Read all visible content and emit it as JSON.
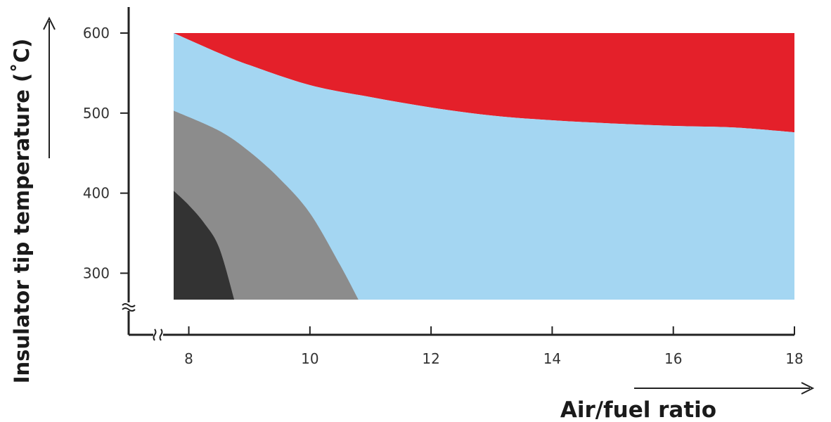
{
  "chart_data": {
    "type": "area",
    "xlabel": "Air/fuel ratio",
    "ylabel": "Insulator tip temperature (˚C)",
    "xlim": [
      7.75,
      18
    ],
    "ylim": [
      267,
      600
    ],
    "x_ticks": [
      8,
      10,
      12,
      14,
      16,
      18
    ],
    "y_ticks": [
      300,
      400,
      500,
      600
    ],
    "axis_breaks": true,
    "grid": false,
    "legend": "none",
    "regions": [
      {
        "color": "#e4202a",
        "upper": [
          [
            7.75,
            600
          ],
          [
            18,
            600
          ]
        ],
        "lower": [
          [
            7.75,
            600
          ],
          [
            8.5,
            575
          ],
          [
            9,
            560
          ],
          [
            10,
            535
          ],
          [
            11,
            520
          ],
          [
            12,
            507
          ],
          [
            13,
            497
          ],
          [
            14,
            491
          ],
          [
            15,
            487
          ],
          [
            16,
            484
          ],
          [
            17,
            482
          ],
          [
            18,
            476
          ]
        ]
      },
      {
        "color": "#a4d6f2",
        "upper": [
          [
            7.75,
            600
          ],
          [
            8.5,
            575
          ],
          [
            9,
            560
          ],
          [
            10,
            535
          ],
          [
            11,
            520
          ],
          [
            12,
            507
          ],
          [
            13,
            497
          ],
          [
            14,
            491
          ],
          [
            15,
            487
          ],
          [
            16,
            484
          ],
          [
            17,
            482
          ],
          [
            18,
            476
          ]
        ],
        "lower": [
          [
            7.75,
            267
          ],
          [
            18,
            267
          ]
        ]
      },
      {
        "color": "#8c8c8c",
        "boundary": [
          [
            7.75,
            503
          ],
          [
            8.5,
            478
          ],
          [
            9,
            452
          ],
          [
            9.5,
            418
          ],
          [
            10,
            375
          ],
          [
            10.5,
            310
          ],
          [
            10.8,
            267
          ]
        ]
      },
      {
        "color": "#333333",
        "boundary": [
          [
            7.75,
            403
          ],
          [
            8,
            385
          ],
          [
            8.25,
            363
          ],
          [
            8.5,
            332
          ],
          [
            8.75,
            267
          ]
        ]
      }
    ]
  }
}
